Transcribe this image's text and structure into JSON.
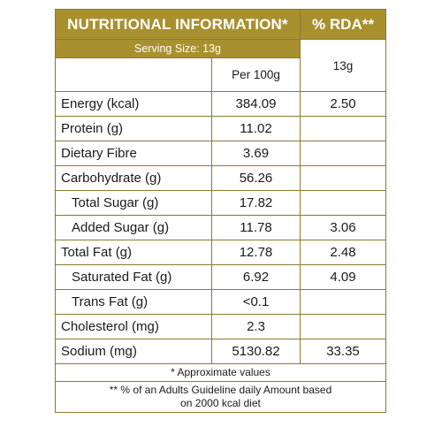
{
  "header": {
    "title": "NUTRITIONAL INFORMATION*",
    "rda_title": "% RDA**",
    "serving_size": "Serving Size: 13g",
    "per_100g": "Per  100g",
    "rda_portion": "13g"
  },
  "rows": [
    {
      "label": "Energy (kcal)",
      "per100": "384.09",
      "rda": "2.50"
    },
    {
      "label": "Protein (g)",
      "per100": "11.02",
      "rda": ""
    },
    {
      "label": "Dietary Fibre",
      "per100": "3.69",
      "rda": ""
    },
    {
      "label": "Carbohydrate (g)",
      "per100": "56.26",
      "rda": ""
    },
    {
      "label": "Total Sugar (g)",
      "per100": "17.82",
      "rda": ""
    },
    {
      "label": "Added Sugar (g)",
      "per100": "11.78",
      "rda": "3.06"
    },
    {
      "label": "Total Fat (g)",
      "per100": "12.78",
      "rda": "2.48"
    },
    {
      "label": "Saturated Fat (g)",
      "per100": "6.92",
      "rda": "4.09"
    },
    {
      "label": "Trans Fat (g)",
      "per100": "<0.1",
      "rda": ""
    },
    {
      "label": "Cholesterol (mg)",
      "per100": "2.3",
      "rda": ""
    },
    {
      "label": "Sodium (mg)",
      "per100": "5130.82",
      "rda": "33.35"
    }
  ],
  "footer": {
    "approx": "* Approximate values",
    "note_line1": "** % of an Adults Guideline daily Amount based",
    "note_line2": "on 2000 kcal diet"
  },
  "colors": {
    "header_bg": "#a8902e",
    "border": "#8a7a30",
    "text": "#1a1a1a"
  }
}
